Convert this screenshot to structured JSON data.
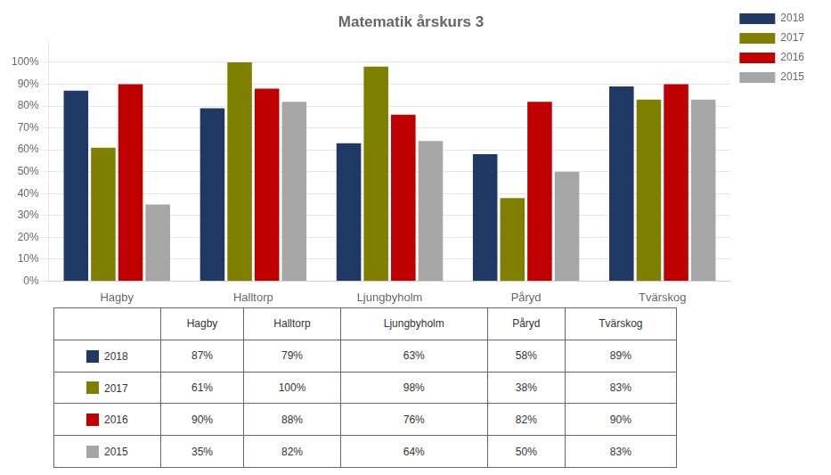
{
  "chart_data": {
    "type": "bar",
    "title": "Matematik årskurs 3",
    "categories": [
      "Hagby",
      "Halltorp",
      "Ljungbyholm",
      "Påryd",
      "Tvärskog"
    ],
    "series": [
      {
        "name": "2018",
        "color": "#1F3864",
        "values": [
          87,
          79,
          63,
          58,
          89
        ],
        "value_labels": [
          "87%",
          "79%",
          "63%",
          "58%",
          "89%"
        ]
      },
      {
        "name": "2017",
        "color": "#808000",
        "values": [
          61,
          100,
          98,
          38,
          83
        ],
        "value_labels": [
          "61%",
          "100%",
          "98%",
          "38%",
          "83%"
        ]
      },
      {
        "name": "2016",
        "color": "#C00000",
        "values": [
          90,
          88,
          76,
          82,
          90
        ],
        "value_labels": [
          "90%",
          "88%",
          "76%",
          "82%",
          "90%"
        ]
      },
      {
        "name": "2015",
        "color": "#A6A6A6",
        "values": [
          35,
          82,
          64,
          50,
          83
        ],
        "value_labels": [
          "35%",
          "82%",
          "64%",
          "50%",
          "83%"
        ]
      }
    ],
    "ylim": [
      0,
      110
    ],
    "yticks": [
      {
        "value": 0,
        "label": "0%"
      },
      {
        "value": 10,
        "label": "10%"
      },
      {
        "value": 20,
        "label": "20%"
      },
      {
        "value": 30,
        "label": "30%"
      },
      {
        "value": 40,
        "label": "40%"
      },
      {
        "value": 50,
        "label": "50%"
      },
      {
        "value": 60,
        "label": "60%"
      },
      {
        "value": 70,
        "label": "70%"
      },
      {
        "value": 80,
        "label": "80%"
      },
      {
        "value": 90,
        "label": "90%"
      },
      {
        "value": 100,
        "label": "100%"
      }
    ],
    "grid": true,
    "legend": "right"
  }
}
